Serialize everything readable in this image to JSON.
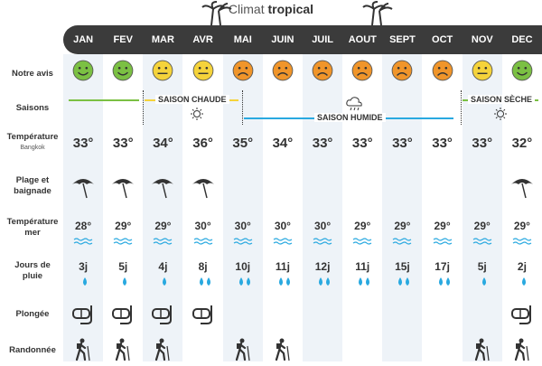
{
  "title": {
    "prefix": "Climat",
    "bold": "tropical"
  },
  "months": [
    "JAN",
    "FEV",
    "MAR",
    "AVR",
    "MAI",
    "JUIN",
    "JUIL",
    "AOUT",
    "SEPT",
    "OCT",
    "NOV",
    "DEC"
  ],
  "rows": {
    "notre_avis": "Notre avis",
    "saisons": "Saisons",
    "temperature": "Température",
    "temperature_sub": "Bangkok",
    "plage_line1": "Plage et",
    "plage_line2": "baignade",
    "temp_mer_line1": "Température",
    "temp_mer_line2": "mer",
    "pluie_line1": "Jours de",
    "pluie_line2": "pluie",
    "plongee": "Plongée",
    "randonnee": "Randonnée"
  },
  "seasons": {
    "chaude": "SAISON CHAUDE",
    "humide": "SAISON HUMIDE",
    "seche": "SAISON SÈCHE"
  },
  "rating_colors": {
    "green": "#7bc043",
    "yellow": "#f5d33b",
    "orange": "#f0952a"
  },
  "ratings": [
    "green",
    "green",
    "yellow",
    "yellow",
    "orange",
    "orange",
    "orange",
    "orange",
    "orange",
    "orange",
    "yellow",
    "green"
  ],
  "temperatures": [
    "33°",
    "33°",
    "34°",
    "36°",
    "35°",
    "34°",
    "33°",
    "33°",
    "33°",
    "33°",
    "33°",
    "32°"
  ],
  "beach": [
    true,
    true,
    true,
    true,
    false,
    false,
    false,
    false,
    false,
    false,
    false,
    true
  ],
  "sea_temps": [
    "28°",
    "29°",
    "29°",
    "30°",
    "30°",
    "30°",
    "30°",
    "29°",
    "29°",
    "29°",
    "29°",
    "29°"
  ],
  "rain_days": [
    "3j",
    "5j",
    "4j",
    "8j",
    "10j",
    "11j",
    "12j",
    "11j",
    "15j",
    "17j",
    "5j",
    "2j"
  ],
  "rain_drops": [
    1,
    1,
    1,
    2,
    2,
    2,
    2,
    2,
    2,
    2,
    1,
    1
  ],
  "diving": [
    true,
    true,
    true,
    true,
    false,
    false,
    false,
    false,
    false,
    false,
    false,
    true
  ],
  "hiking": [
    true,
    true,
    true,
    false,
    true,
    true,
    false,
    false,
    false,
    false,
    true,
    true
  ],
  "icons": {
    "sun": "sun-icon",
    "cloud": "rain-cloud-icon",
    "umbrella": "beach-umbrella-icon",
    "drop": "raindrop-icon",
    "mask": "diving-mask-icon",
    "hiker": "hiker-icon",
    "wave": "wave-icon"
  },
  "colors": {
    "header_bg": "#3b3b3b",
    "col_bg": "#eef3f8",
    "green_arrow": "#7bc043",
    "yellow_arrow": "#f5d33b",
    "blue_arrow": "#29a9e0",
    "drop": "#29a9e0",
    "wave": "#29a9e0"
  }
}
